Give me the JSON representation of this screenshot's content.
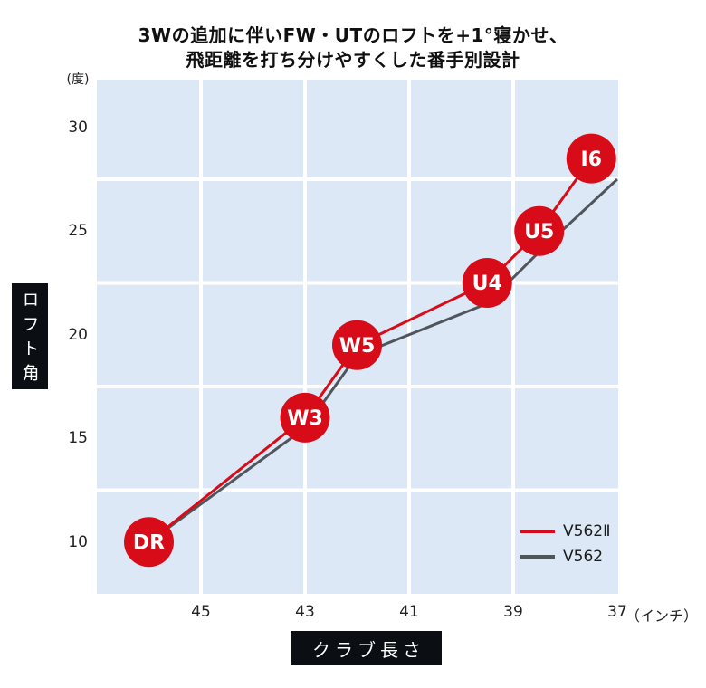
{
  "title": {
    "line1": "3Wの追加に伴いFW・UTのロフトを+1°寝かせ、",
    "line2": "飛距離を打ち分けやすくした番手別設計"
  },
  "y_axis": {
    "unit": "(度)",
    "label": "ロフト角",
    "ticks": [
      30,
      25,
      20,
      15,
      10
    ],
    "gridlines": [
      27.5,
      22.5,
      17.5,
      12.5
    ]
  },
  "x_axis": {
    "unit": "（インチ）",
    "label": "クラブ長さ",
    "ticks": [
      45,
      43,
      41,
      39,
      37
    ],
    "gridlines": [
      45,
      43,
      41,
      39
    ],
    "reversed": true
  },
  "colors": {
    "red": "#d80c18",
    "gray": "#4f555b",
    "plot_bg": "#dce8f6",
    "grid_line": "#ffffff",
    "label_box_bg": "#0b0e13",
    "label_box_text": "#ffffff",
    "marker_text": "#ffffff",
    "tick_text": "#222222",
    "title_text": "#101010"
  },
  "legend": {
    "position": "inside-bottom-right",
    "entries": [
      {
        "label": "V562Ⅱ",
        "color": "#d80c18"
      },
      {
        "label": "V562",
        "color": "#4f555b"
      }
    ]
  },
  "chart_data": {
    "type": "line",
    "title": "3Wの追加に伴いFW・UTのロフトを+1°寝かせ、飛距離を打ち分けやすくした番手別設計",
    "xlabel": "クラブ長さ",
    "x_unit": "インチ",
    "ylabel": "ロフト角",
    "y_unit": "度",
    "x_reversed": true,
    "xlim": [
      47,
      37
    ],
    "ylim": [
      7.5,
      32.3
    ],
    "x_ticks": [
      45,
      43,
      41,
      39,
      37
    ],
    "y_ticks": [
      30,
      25,
      20,
      15,
      10
    ],
    "grid": true,
    "series": [
      {
        "name": "V562Ⅱ",
        "color": "#d80c18",
        "line_width": 3,
        "markers": true,
        "points": [
          {
            "label": "DR",
            "x": 46.0,
            "y": 10.0
          },
          {
            "label": "W3",
            "x": 43.0,
            "y": 16.0
          },
          {
            "label": "W5",
            "x": 42.0,
            "y": 19.5
          },
          {
            "label": "U4",
            "x": 39.5,
            "y": 22.5
          },
          {
            "label": "U5",
            "x": 38.5,
            "y": 25.0
          },
          {
            "label": "I6",
            "x": 37.5,
            "y": 28.5
          }
        ]
      },
      {
        "name": "V562",
        "color": "#4f555b",
        "line_width": 3,
        "markers": false,
        "points": [
          {
            "label": "DR",
            "x": 46.0,
            "y": 10.0
          },
          {
            "label": "W3",
            "x": 43.0,
            "y": 15.5
          },
          {
            "label": "W5",
            "x": 42.0,
            "y": 19.0
          },
          {
            "label": "U4",
            "x": 39.5,
            "y": 21.5
          },
          {
            "label": "U5",
            "x": 38.5,
            "y": 24.0
          },
          {
            "label": "I6",
            "x": 37.0,
            "y": 27.5
          }
        ]
      }
    ]
  }
}
